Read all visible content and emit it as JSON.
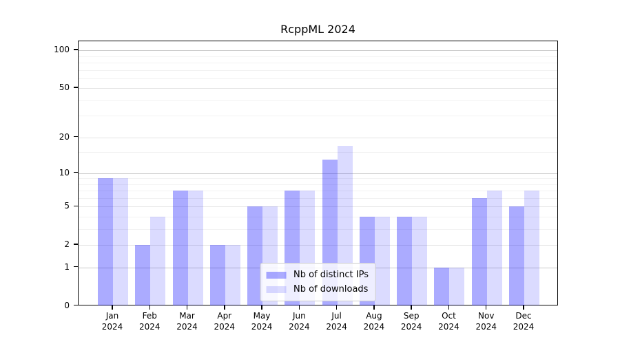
{
  "chart_data": {
    "type": "bar",
    "title": "RcppML 2024",
    "categories": [
      "Jan",
      "Feb",
      "Mar",
      "Apr",
      "May",
      "Jun",
      "Jul",
      "Aug",
      "Sep",
      "Oct",
      "Nov",
      "Dec"
    ],
    "category_year": "2024",
    "series": [
      {
        "name": "Nb of distinct IPs",
        "color": "rgba(0,0,255,0.33)",
        "values": [
          9,
          2,
          7,
          2,
          5,
          7,
          13,
          4,
          4,
          1,
          6,
          5
        ]
      },
      {
        "name": "Nb of downloads",
        "color": "rgba(0,0,255,0.14)",
        "values": [
          9,
          4,
          7,
          2,
          5,
          7,
          17,
          4,
          4,
          1,
          7,
          7
        ]
      }
    ],
    "xlabel": "",
    "ylabel": "",
    "y_scale": "log1p",
    "ylim": [
      0,
      118
    ],
    "y_major_ticks": [
      0,
      1,
      2,
      5,
      10,
      20,
      50,
      100
    ],
    "y_minor_ticks": [
      3,
      4,
      6,
      7,
      8,
      9,
      15,
      30,
      40,
      60,
      70,
      80,
      90
    ],
    "grid": true,
    "legend_position": "lower center",
    "colors": {
      "grid_decade": "#c9c9c9",
      "grid_major": "#e4e4e4",
      "grid_minor": "#f2f2f2",
      "axis": "#000000",
      "background": "#ffffff"
    }
  }
}
